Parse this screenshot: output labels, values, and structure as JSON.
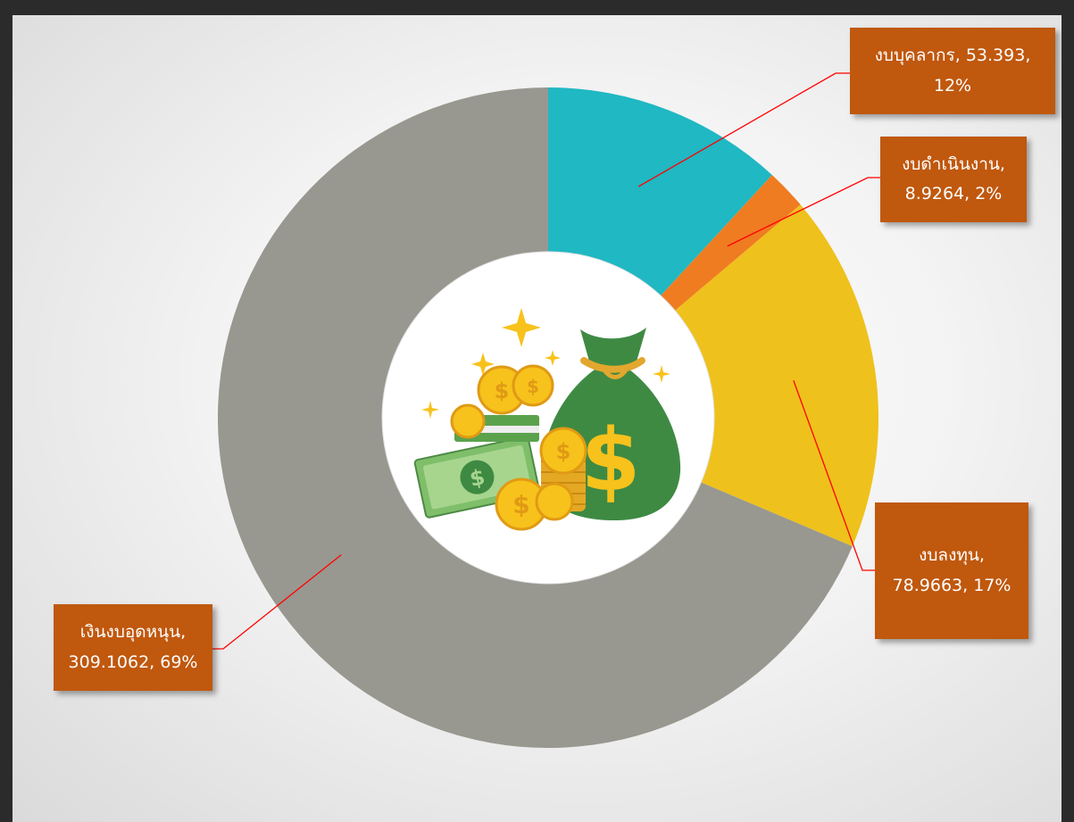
{
  "chart_data": {
    "type": "pie",
    "donut": true,
    "legend": "none",
    "slices": [
      {
        "name": "งบบุคลากร",
        "value": 53.393,
        "percent": "12%",
        "color": "#1fb8c3"
      },
      {
        "name": "งบดำเนินงาน",
        "value": 8.9264,
        "percent": "2%",
        "color": "#ef7c21"
      },
      {
        "name": "งบลงทุน",
        "value": 78.9663,
        "percent": "17%",
        "color": "#efc11c"
      },
      {
        "name": "เงินงบอุดหนุน",
        "value": 309.1062,
        "percent": "69%",
        "color": "#989890"
      }
    ],
    "labels": [
      {
        "line1": "งบบุคลากร, 53.393,",
        "line2": "12%"
      },
      {
        "line1": "งบดำเนินงาน,",
        "line2": "8.9264, 2%"
      },
      {
        "line1": "งบลงทุน,",
        "line2": "78.9663, 17%"
      },
      {
        "line1": "เงินงบอุดหนุน,",
        "line2": "309.1062, 69%"
      }
    ],
    "center_image": "money-bag-coins-icon",
    "label_box_color": "#c0580e",
    "leader_line_color": "#ff0000"
  }
}
